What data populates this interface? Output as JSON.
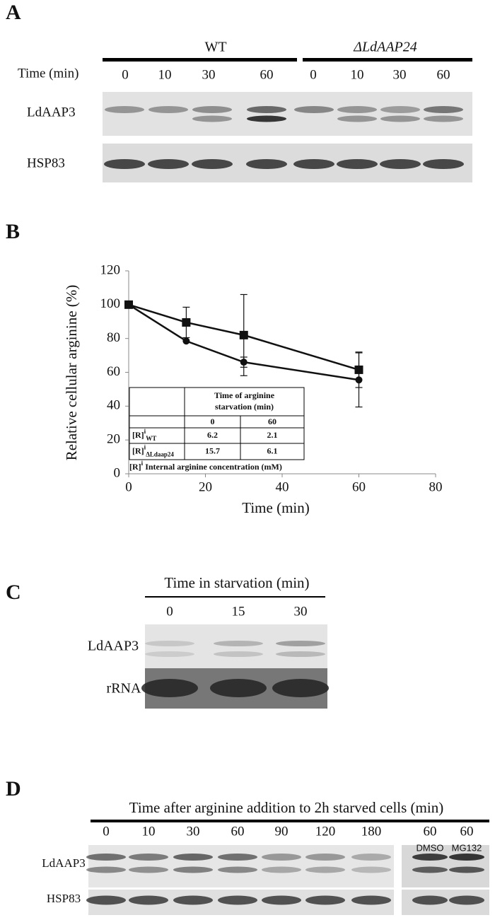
{
  "panels": {
    "a": {
      "label": "A",
      "groups": [
        "WT",
        "ΔLdAAP24"
      ],
      "time_label": "Time (min)",
      "times": [
        "0",
        "10",
        "30",
        "60",
        "0",
        "10",
        "30",
        "60"
      ],
      "rows": [
        "LdAAP3",
        "HSP83"
      ]
    },
    "b": {
      "label": "B"
    },
    "c": {
      "label": "C",
      "title": "Time in starvation (min)",
      "times": [
        "0",
        "15",
        "30"
      ],
      "rows": [
        "LdAAP3",
        "rRNA"
      ]
    },
    "d": {
      "label": "D",
      "title": "Time after arginine addition to 2h starved cells (min)",
      "times": [
        "0",
        "10",
        "30",
        "60",
        "90",
        "120",
        "180",
        "60",
        "60"
      ],
      "treatments": [
        "DMSO",
        "MG132"
      ],
      "rows": [
        "LdAAP3",
        "HSP83"
      ]
    }
  },
  "chart_data": {
    "type": "line",
    "xlabel": "Time (min)",
    "ylabel": "Relative cellular arginine (%)",
    "x": [
      0,
      15,
      30,
      60
    ],
    "series": [
      {
        "color": "#111111",
        "marker": "square",
        "values": [
          100,
          89.5,
          82,
          61.5
        ],
        "errors": [
          0,
          9,
          24,
          10.5
        ]
      },
      {
        "color": "#111111",
        "marker": "circle",
        "values": [
          100,
          78.5,
          66,
          55.5
        ],
        "errors": [
          0,
          0,
          3,
          16
        ]
      }
    ],
    "xlim": [
      0,
      80
    ],
    "xticks": [
      0,
      20,
      40,
      60,
      80
    ],
    "ylim": [
      0,
      120
    ],
    "yticks": [
      0,
      20,
      40,
      60,
      80,
      100,
      120
    ],
    "inset_table": {
      "header": "Time of arginine starvation (min)",
      "columns": [
        "0",
        "60"
      ],
      "rows": [
        {
          "label": {
            "base": "[R]",
            "sup": "i",
            "sub": "WT"
          },
          "cells": [
            "6.2",
            "2.1"
          ]
        },
        {
          "label": {
            "base": "[R]",
            "sup": "i",
            "sub": "ΔLdaap24"
          },
          "cells": [
            "15.7",
            "6.1"
          ]
        }
      ],
      "footnote": {
        "base": "[R]",
        "sup": "i",
        "text": " Internal arginine concentration (mM)"
      }
    }
  }
}
